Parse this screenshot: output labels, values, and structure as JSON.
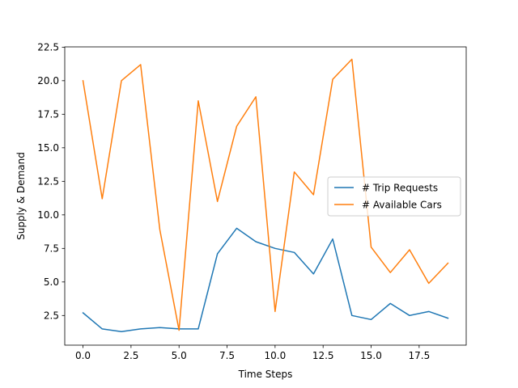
{
  "chart_data": {
    "type": "line",
    "title": "",
    "xlabel": "Time Steps",
    "ylabel": "Supply & Demand",
    "xlim": [
      -0.95,
      19.95
    ],
    "ylim": [
      0.29,
      22.52
    ],
    "x_ticks": [
      0.0,
      2.5,
      5.0,
      7.5,
      10.0,
      12.5,
      15.0,
      17.5
    ],
    "x_tick_labels": [
      "0.0",
      "2.5",
      "5.0",
      "7.5",
      "10.0",
      "12.5",
      "15.0",
      "17.5"
    ],
    "y_ticks": [
      2.5,
      5.0,
      7.5,
      10.0,
      12.5,
      15.0,
      17.5,
      20.0,
      22.5
    ],
    "y_tick_labels": [
      "2.5",
      "5.0",
      "7.5",
      "10.0",
      "12.5",
      "15.0",
      "17.5",
      "20.0",
      "22.5"
    ],
    "legend_position": "center-right",
    "grid": false,
    "x": [
      0,
      1,
      2,
      3,
      4,
      5,
      6,
      7,
      8,
      9,
      10,
      11,
      12,
      13,
      14,
      15,
      16,
      17,
      18,
      19
    ],
    "series": [
      {
        "name": "# Trip Requests",
        "color": "#1f77b4",
        "values": [
          2.7,
          1.5,
          1.3,
          1.5,
          1.6,
          1.5,
          1.5,
          7.1,
          9.0,
          8.0,
          7.5,
          7.2,
          5.6,
          8.2,
          2.5,
          2.2,
          3.4,
          2.5,
          2.8,
          2.3
        ]
      },
      {
        "name": "# Available Cars",
        "color": "#ff7f0e",
        "values": [
          20.0,
          11.2,
          20.0,
          21.2,
          8.9,
          1.4,
          18.5,
          11.0,
          16.6,
          18.8,
          2.8,
          13.2,
          11.5,
          20.1,
          21.6,
          7.6,
          5.7,
          7.4,
          4.9,
          6.4
        ]
      }
    ]
  }
}
